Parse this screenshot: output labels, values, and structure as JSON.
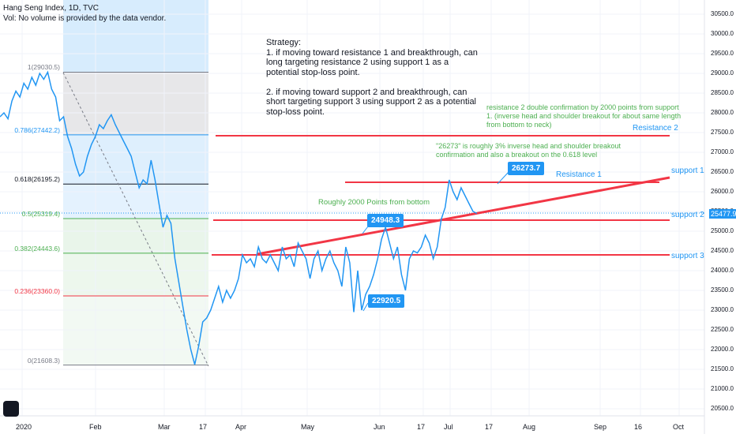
{
  "header": {
    "title": "Hang Seng Index, 1D, TVC",
    "vol_note": "Vol: No volume is provided by the data vendor."
  },
  "annotations": {
    "strategy": "Strategy:\n1. if moving toward resistance 1 and breakthrough, can\nlong targeting resistance 2 using support 1 as a\npotential stop-loss point.\n\n2. if moving toward support 2 and breakthrough, can\nshort targeting support 3 using support 2 as a potential\nstop-loss point.",
    "resistance2_note": "resistance 2 double confirmation by 2000 points from support\n1. (inverse head and shoulder breakout for about same length\nfrom bottom to neck)",
    "breakout_note": "\"26273\" is roughly 3% inverse head and shoulder breakout\nconfirmation and also a breakout on the 0.618 level",
    "bottom_note": "Roughly 2000 Points from bottom",
    "resistance1": "Resistance 1",
    "resistance2": "Resistance 2",
    "support1": "support 1",
    "support2": "support 2",
    "support3": "support 3",
    "callout_high": "26273.7",
    "callout_mid": "24948.3",
    "callout_low": "22920.5",
    "last_price": "25477.9"
  },
  "fib": [
    {
      "label": "1(29030.5)",
      "value": 29030.5,
      "color": "#787b86"
    },
    {
      "label": "0.786(27442.2)",
      "value": 27442.2,
      "color": "#2196f3"
    },
    {
      "label": "0.618(26195.2)",
      "value": 26195.2,
      "color": "#131722"
    },
    {
      "label": "0.5(25319.4)",
      "value": 25319.4,
      "color": "#4caf50"
    },
    {
      "label": "0.382(24443.6)",
      "value": 24443.6,
      "color": "#4caf50"
    },
    {
      "label": "0.236(23360.0)",
      "value": 23360.0,
      "color": "#f23645"
    },
    {
      "label": "0(21608.3)",
      "value": 21608.3,
      "color": "#787b86"
    }
  ],
  "chart_data": {
    "type": "line",
    "title": "Hang Seng Index, 1D, TVC",
    "x_ticks": [
      "2020",
      "Feb",
      "Mar",
      "17",
      "Apr",
      "May",
      "Jun",
      "17",
      "Jul",
      "17",
      "Aug",
      "Sep",
      "16",
      "Oct"
    ],
    "y_ticks": [
      20500,
      21000,
      21500,
      22000,
      22500,
      23000,
      23500,
      24000,
      24500,
      25000,
      25500,
      26000,
      26500,
      27000,
      27500,
      28000,
      28500,
      29000,
      29500,
      30000,
      30500
    ],
    "ylim": [
      20300,
      30800
    ],
    "series": [
      {
        "values": [
          27900,
          28000,
          27850,
          28300,
          28550,
          28400,
          28750,
          28600,
          28900,
          28700,
          29000,
          28850,
          29030,
          28600,
          28400,
          27800,
          27900,
          27400,
          27100,
          26700,
          26400,
          26500,
          26900,
          27200,
          27400,
          27700,
          27600,
          27800,
          27950,
          27700,
          27500,
          27300,
          27100,
          26900,
          26500,
          26100,
          26300,
          26200,
          26800,
          26300,
          25700,
          25100,
          25400,
          25200,
          24300,
          23700,
          23100,
          22500,
          22000,
          21620,
          22100,
          22700,
          22800,
          23000,
          23300,
          23600,
          23200,
          23500,
          23300,
          23500,
          23800,
          24400,
          24200,
          24300,
          24100,
          24600,
          24300,
          24200,
          24400,
          24200,
          24000,
          24600,
          24300,
          24400,
          24100,
          24700,
          24500,
          24300,
          23800,
          24300,
          24500,
          24000,
          24300,
          24500,
          24200,
          24000,
          23600,
          24600,
          24200,
          22950,
          24000,
          23000,
          23400,
          23600,
          23900,
          24300,
          24800,
          25100,
          24700,
          24300,
          24600,
          23900,
          23500,
          24300,
          24500,
          24450,
          24600,
          24900,
          24700,
          24300,
          24600,
          25300,
          25600,
          26300,
          26000,
          25800,
          26100,
          25900,
          25700,
          25500,
          25450
        ]
      }
    ]
  }
}
